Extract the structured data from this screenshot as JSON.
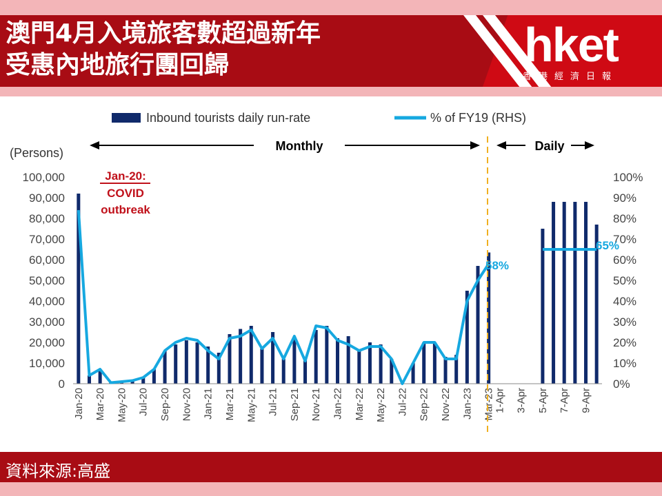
{
  "header": {
    "title_line1": "澳門4月入境旅客數超過新年",
    "title_line2": "受惠內地旅行團回歸",
    "logo": "hket",
    "logo_sub": "香港經濟日報"
  },
  "footer": {
    "source": "資料來源:高盛"
  },
  "colors": {
    "bar": "#102a6b",
    "line": "#16a8e0",
    "header": "#a80c14",
    "annotation": "#c0101a",
    "divider": "#f0b020"
  },
  "chart_data": {
    "type": "bar",
    "legend": {
      "bar_label": "Inbound tourists daily run-rate",
      "line_label": "% of FY19 (RHS)",
      "placement": "top"
    },
    "ylabel": "(Persons)",
    "ylim": [
      0,
      100000
    ],
    "y2lim": [
      0,
      1
    ],
    "y_ticks": [
      "0",
      "10,000",
      "20,000",
      "30,000",
      "40,000",
      "50,000",
      "60,000",
      "70,000",
      "80,000",
      "90,000",
      "100,000"
    ],
    "y2_ticks": [
      "0%",
      "10%",
      "20%",
      "30%",
      "40%",
      "50%",
      "60%",
      "70%",
      "80%",
      "90%",
      "100%"
    ],
    "monthly_label": "Monthly",
    "daily_label": "Daily",
    "annotation": {
      "line1": "Jan-20:",
      "line2": "COVID",
      "line3": "outbreak"
    },
    "categories": [
      "Jan-20",
      "Feb-20",
      "Mar-20",
      "Apr-20",
      "May-20",
      "Jun-20",
      "Jul-20",
      "Aug-20",
      "Sep-20",
      "Oct-20",
      "Nov-20",
      "Dec-20",
      "Jan-21",
      "Feb-21",
      "Mar-21",
      "Apr-21",
      "May-21",
      "Jun-21",
      "Jul-21",
      "Aug-21",
      "Sep-21",
      "Oct-21",
      "Nov-21",
      "Dec-21",
      "Jan-22",
      "Feb-22",
      "Mar-22",
      "Apr-22",
      "May-22",
      "Jun-22",
      "Jul-22",
      "Aug-22",
      "Sep-22",
      "Oct-22",
      "Nov-22",
      "Dec-22",
      "Jan-23",
      "Feb-23",
      "Mar-23",
      "1-Apr",
      "2-Apr",
      "3-Apr",
      "4-Apr",
      "5-Apr",
      "6-Apr",
      "7-Apr",
      "8-Apr",
      "9-Apr",
      "10-Apr"
    ],
    "x_tick_labels": [
      "Jan-20",
      "",
      "Mar-20",
      "",
      "May-20",
      "",
      "Jul-20",
      "",
      "Sep-20",
      "",
      "Nov-20",
      "",
      "Jan-21",
      "",
      "Mar-21",
      "",
      "May-21",
      "",
      "Jul-21",
      "",
      "Sep-21",
      "",
      "Nov-21",
      "",
      "Jan-22",
      "",
      "Mar-22",
      "",
      "May-22",
      "",
      "Jul-22",
      "",
      "Sep-22",
      "",
      "Nov-22",
      "",
      "Jan-23",
      "",
      "Mar-23",
      "1-Apr",
      "",
      "3-Apr",
      "",
      "5-Apr",
      "",
      "7-Apr",
      "",
      "9-Apr",
      ""
    ],
    "bar_values": [
      92000,
      4000,
      7000,
      500,
      1000,
      1500,
      3000,
      7000,
      16000,
      19000,
      21000,
      20000,
      18000,
      15000,
      24000,
      26500,
      28000,
      17000,
      25000,
      12000,
      22000,
      12000,
      26000,
      28000,
      22000,
      23000,
      16000,
      20000,
      19000,
      12000,
      1500,
      10000,
      20000,
      20000,
      13000,
      14000,
      45000,
      57000,
      63500,
      0,
      0,
      0,
      0,
      75000,
      88000,
      88000,
      88000,
      88000,
      77000
    ],
    "line_values": [
      0.84,
      0.04,
      0.07,
      0.005,
      0.01,
      0.015,
      0.03,
      0.07,
      0.16,
      0.2,
      0.22,
      0.21,
      0.16,
      0.12,
      0.22,
      0.23,
      0.26,
      0.17,
      0.22,
      0.12,
      0.23,
      0.11,
      0.28,
      0.27,
      0.21,
      0.19,
      0.16,
      0.18,
      0.18,
      0.12,
      0.0,
      0.1,
      0.2,
      0.2,
      0.12,
      0.12,
      0.4,
      0.5,
      0.58,
      null,
      null,
      null,
      null,
      0.65,
      0.65,
      0.65,
      0.65,
      0.65,
      0.65
    ],
    "data_labels": {
      "mar23": "58%",
      "daily": "65%"
    }
  }
}
